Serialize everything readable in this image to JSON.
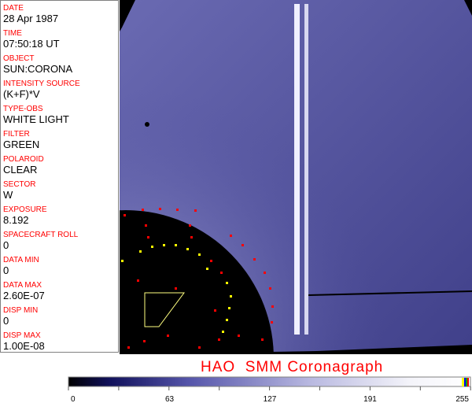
{
  "header_fields": [
    {
      "label": "DATE",
      "value": "28 Apr 1987"
    },
    {
      "label": "TIME",
      "value": "07:50:18 UT"
    },
    {
      "label": "OBJECT",
      "value": "SUN:CORONA"
    },
    {
      "label": "INTENSITY SOURCE",
      "value": "(K+F)*V"
    },
    {
      "label": "TYPE-OBS",
      "value": "WHITE LIGHT"
    },
    {
      "label": "FILTER",
      "value": "GREEN"
    },
    {
      "label": "POLAROID",
      "value": "CLEAR"
    },
    {
      "label": "SECTOR",
      "value": "W"
    },
    {
      "label": "EXPOSURE",
      "value": "8.192"
    },
    {
      "label": "SPACECRAFT ROLL",
      "value": "0"
    },
    {
      "label": "DATA MIN",
      "value": "0"
    },
    {
      "label": "DATA MAX",
      "value": "2.60E-07"
    },
    {
      "label": "DISP MIN",
      "value": "0"
    },
    {
      "label": "DISP MAX",
      "value": "1.00E-08"
    }
  ],
  "image_title": "HAO  SMM Coronagraph",
  "colorbar": {
    "ticks": [
      "0",
      "63",
      "127",
      "191",
      "255"
    ],
    "colors": {
      "low": "#000000",
      "mid": "#5a5aaa",
      "high": "#ffffff"
    }
  },
  "colors": {
    "label": "#ff0000",
    "overlay_dots": "#ff0000",
    "grid_dots": "#ffff00"
  }
}
